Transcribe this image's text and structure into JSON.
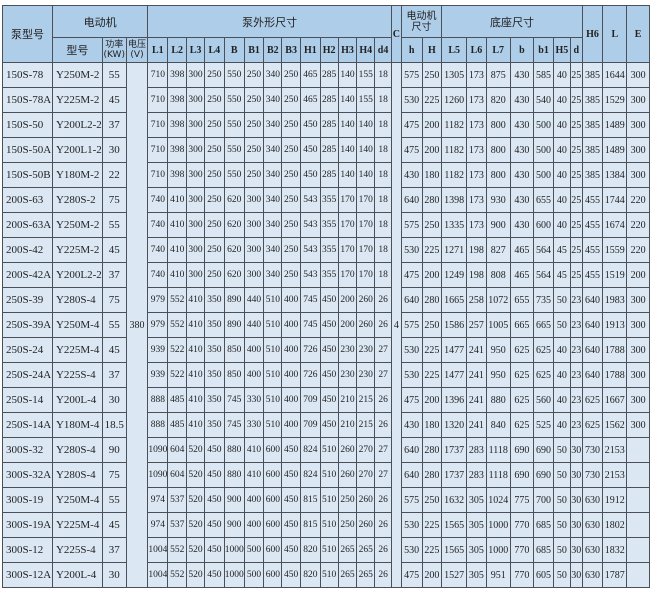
{
  "header": {
    "pump_model": "泵型号",
    "motor": "电动机",
    "motor_model": "型号",
    "power": "功率(KW)",
    "voltage": "电压(V)",
    "pump_dims": "泵外形尺寸",
    "pump_cols": [
      "L1",
      "L2",
      "L3",
      "L4",
      "B",
      "B1",
      "B2",
      "B3",
      "H1",
      "H2",
      "H3",
      "H4",
      "d4"
    ],
    "C": "C",
    "motor_dims": "电动机尺寸",
    "motor_cols": [
      "h",
      "H"
    ],
    "base_dims": "底座尺寸",
    "base_cols": [
      "L5",
      "L6",
      "L7",
      "b",
      "b1",
      "H5",
      "d"
    ],
    "H6": "H6",
    "L": "L",
    "E": "E"
  },
  "voltage_value": "380",
  "C_value": "4",
  "rows": [
    [
      "150S-78",
      "Y250M-2",
      "55",
      "710",
      "398",
      "300",
      "250",
      "550",
      "250",
      "340",
      "250",
      "465",
      "285",
      "140",
      "155",
      "18",
      "575",
      "250",
      "1305",
      "173",
      "875",
      "430",
      "585",
      "40",
      "25",
      "385",
      "1644",
      "300"
    ],
    [
      "150S-78A",
      "Y225M-2",
      "45",
      "710",
      "398",
      "300",
      "250",
      "550",
      "250",
      "340",
      "250",
      "465",
      "285",
      "140",
      "155",
      "18",
      "530",
      "225",
      "1260",
      "173",
      "820",
      "430",
      "540",
      "40",
      "25",
      "385",
      "1529",
      "300"
    ],
    [
      "150S-50",
      "Y200L2-2",
      "37",
      "710",
      "398",
      "300",
      "250",
      "550",
      "250",
      "340",
      "250",
      "450",
      "285",
      "140",
      "140",
      "18",
      "475",
      "200",
      "1182",
      "173",
      "800",
      "430",
      "500",
      "40",
      "25",
      "385",
      "1489",
      "300"
    ],
    [
      "150S-50A",
      "Y200L1-2",
      "30",
      "710",
      "398",
      "300",
      "250",
      "550",
      "250",
      "340",
      "250",
      "450",
      "285",
      "140",
      "140",
      "18",
      "475",
      "200",
      "1182",
      "173",
      "800",
      "430",
      "500",
      "40",
      "25",
      "385",
      "1489",
      "300"
    ],
    [
      "150S-50B",
      "Y180M-2",
      "22",
      "710",
      "398",
      "300",
      "250",
      "550",
      "250",
      "340",
      "250",
      "450",
      "285",
      "140",
      "140",
      "18",
      "430",
      "180",
      "1182",
      "173",
      "800",
      "430",
      "500",
      "40",
      "25",
      "385",
      "1384",
      "300"
    ],
    [
      "200S-63",
      "Y280S-2",
      "75",
      "740",
      "410",
      "300",
      "250",
      "620",
      "300",
      "340",
      "250",
      "543",
      "355",
      "170",
      "170",
      "18",
      "640",
      "280",
      "1398",
      "173",
      "930",
      "430",
      "655",
      "40",
      "25",
      "455",
      "1744",
      "220"
    ],
    [
      "200S-63A",
      "Y250M-2",
      "55",
      "740",
      "410",
      "300",
      "250",
      "620",
      "300",
      "340",
      "250",
      "543",
      "355",
      "170",
      "170",
      "18",
      "575",
      "250",
      "1335",
      "173",
      "900",
      "430",
      "600",
      "40",
      "25",
      "455",
      "1674",
      "220"
    ],
    [
      "200S-42",
      "Y225M-2",
      "45",
      "740",
      "410",
      "300",
      "250",
      "620",
      "300",
      "340",
      "250",
      "543",
      "355",
      "170",
      "170",
      "18",
      "530",
      "225",
      "1271",
      "198",
      "827",
      "465",
      "564",
      "45",
      "25",
      "455",
      "1559",
      "220"
    ],
    [
      "200S-42A",
      "Y200L2-2",
      "37",
      "740",
      "410",
      "300",
      "250",
      "620",
      "300",
      "340",
      "250",
      "543",
      "355",
      "170",
      "170",
      "18",
      "475",
      "200",
      "1249",
      "198",
      "808",
      "465",
      "564",
      "45",
      "25",
      "455",
      "1519",
      "200"
    ],
    [
      "250S-39",
      "Y280S-4",
      "75",
      "979",
      "552",
      "410",
      "350",
      "890",
      "440",
      "510",
      "400",
      "745",
      "450",
      "200",
      "260",
      "26",
      "640",
      "280",
      "1665",
      "258",
      "1072",
      "655",
      "735",
      "50",
      "23",
      "640",
      "1983",
      "300"
    ],
    [
      "250S-39A",
      "Y250M-4",
      "55",
      "979",
      "552",
      "410",
      "350",
      "890",
      "440",
      "510",
      "400",
      "745",
      "450",
      "200",
      "260",
      "26",
      "575",
      "250",
      "1586",
      "257",
      "1005",
      "665",
      "665",
      "50",
      "23",
      "640",
      "1913",
      "300"
    ],
    [
      "250S-24",
      "Y225M-4",
      "45",
      "939",
      "522",
      "410",
      "350",
      "850",
      "400",
      "510",
      "400",
      "726",
      "450",
      "230",
      "230",
      "27",
      "530",
      "225",
      "1477",
      "241",
      "950",
      "625",
      "625",
      "40",
      "23",
      "640",
      "1788",
      "300"
    ],
    [
      "250S-24A",
      "Y225S-4",
      "37",
      "939",
      "522",
      "410",
      "350",
      "850",
      "400",
      "510",
      "400",
      "726",
      "450",
      "230",
      "230",
      "27",
      "530",
      "225",
      "1477",
      "241",
      "950",
      "625",
      "625",
      "40",
      "23",
      "640",
      "1788",
      "300"
    ],
    [
      "250S-14",
      "Y200L-4",
      "30",
      "888",
      "485",
      "410",
      "350",
      "745",
      "330",
      "510",
      "400",
      "709",
      "450",
      "210",
      "215",
      "26",
      "475",
      "200",
      "1396",
      "241",
      "880",
      "625",
      "560",
      "40",
      "23",
      "625",
      "1667",
      "300"
    ],
    [
      "250S-14A",
      "Y180M-4",
      "18.5",
      "888",
      "485",
      "410",
      "350",
      "745",
      "330",
      "510",
      "400",
      "709",
      "450",
      "210",
      "215",
      "26",
      "430",
      "180",
      "1320",
      "241",
      "840",
      "625",
      "525",
      "40",
      "23",
      "625",
      "1562",
      "300"
    ],
    [
      "300S-32",
      "Y280S-4",
      "90",
      "1090",
      "604",
      "520",
      "450",
      "880",
      "410",
      "600",
      "450",
      "824",
      "510",
      "260",
      "270",
      "27",
      "640",
      "280",
      "1737",
      "283",
      "1118",
      "690",
      "690",
      "50",
      "30",
      "730",
      "2153",
      ""
    ],
    [
      "300S-32A",
      "Y280S-4",
      "75",
      "1090",
      "604",
      "520",
      "450",
      "880",
      "410",
      "600",
      "450",
      "824",
      "510",
      "260",
      "270",
      "27",
      "640",
      "280",
      "1737",
      "283",
      "1118",
      "690",
      "690",
      "50",
      "30",
      "730",
      "2153",
      ""
    ],
    [
      "300S-19",
      "Y250M-4",
      "55",
      "974",
      "537",
      "520",
      "450",
      "900",
      "400",
      "600",
      "450",
      "815",
      "510",
      "250",
      "260",
      "26",
      "575",
      "250",
      "1632",
      "305",
      "1024",
      "775",
      "700",
      "50",
      "30",
      "630",
      "1912",
      ""
    ],
    [
      "300S-19A",
      "Y225M-4",
      "45",
      "974",
      "537",
      "520",
      "450",
      "900",
      "400",
      "600",
      "450",
      "815",
      "510",
      "250",
      "260",
      "26",
      "530",
      "225",
      "1565",
      "305",
      "1000",
      "770",
      "685",
      "50",
      "30",
      "630",
      "1802",
      ""
    ],
    [
      "300S-12",
      "Y225S-4",
      "37",
      "1004",
      "552",
      "520",
      "450",
      "1000",
      "500",
      "600",
      "450",
      "820",
      "510",
      "265",
      "265",
      "26",
      "530",
      "225",
      "1565",
      "305",
      "1000",
      "770",
      "685",
      "50",
      "30",
      "630",
      "1832",
      ""
    ],
    [
      "300S-12A",
      "Y200L-4",
      "30",
      "1004",
      "552",
      "520",
      "450",
      "1000",
      "500",
      "600",
      "450",
      "820",
      "510",
      "265",
      "265",
      "26",
      "475",
      "200",
      "1527",
      "305",
      "951",
      "770",
      "605",
      "50",
      "30",
      "630",
      "1787",
      ""
    ]
  ]
}
